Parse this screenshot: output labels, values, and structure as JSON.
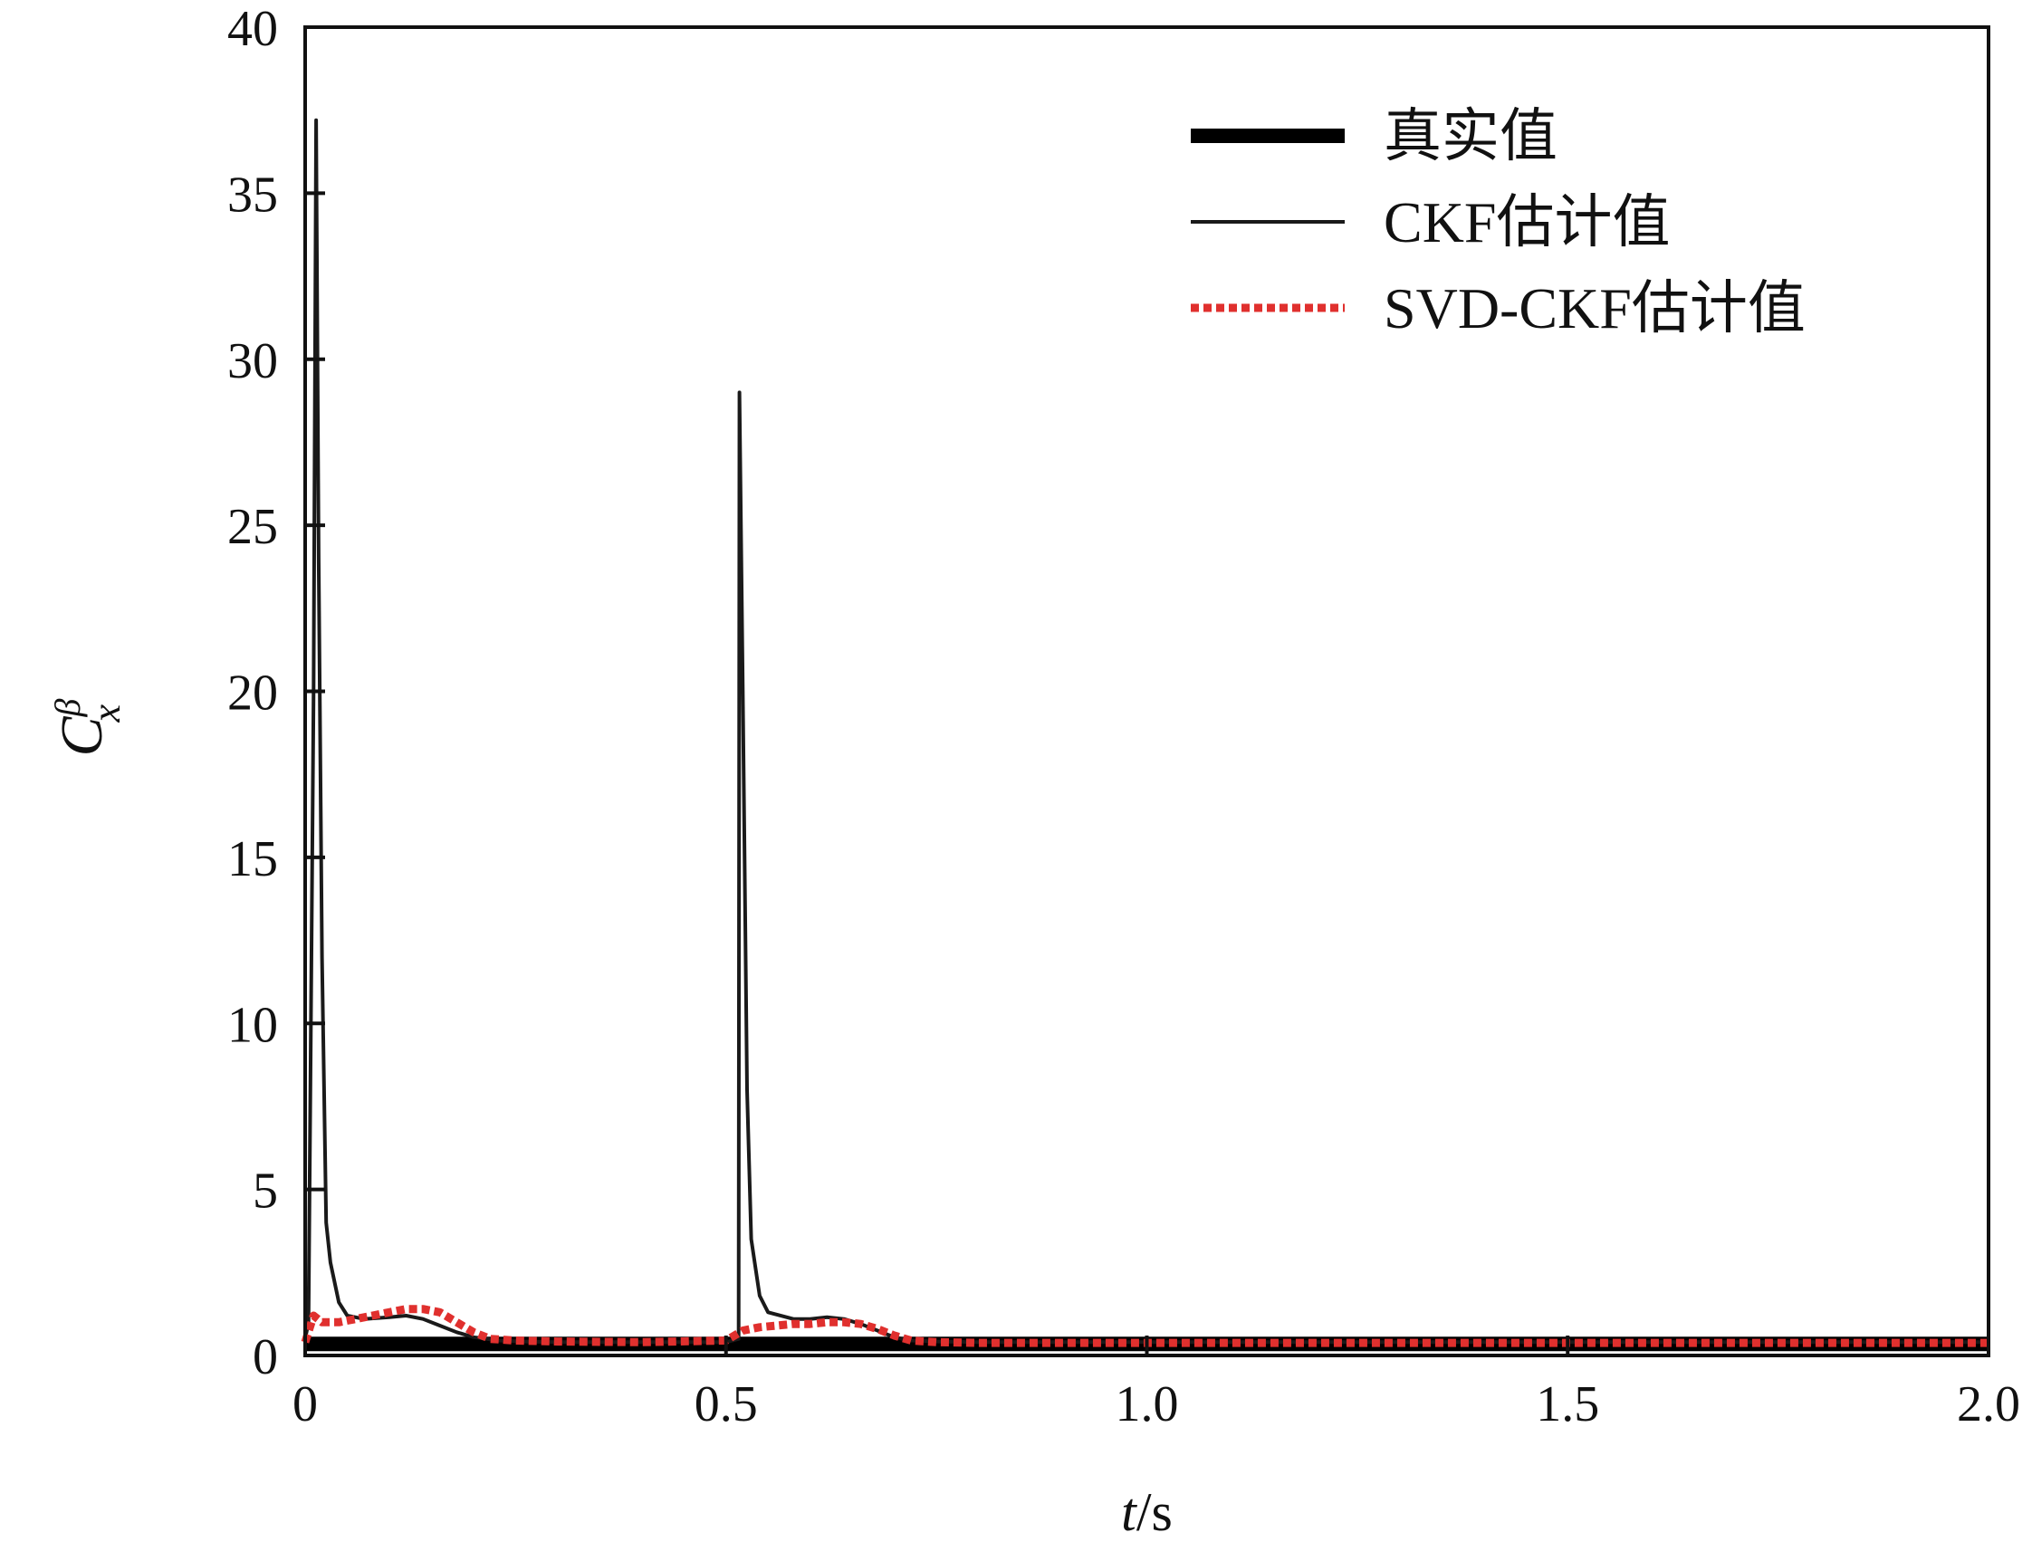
{
  "chart_data": {
    "type": "line",
    "title": "",
    "xlabel": {
      "var": "t",
      "unit": "/s"
    },
    "ylabel": {
      "base": "C",
      "sup": "β",
      "sub": "x"
    },
    "xlim": [
      0,
      2.0
    ],
    "ylim": [
      0,
      40
    ],
    "xticks": [
      "0",
      "0.5",
      "1.0",
      "1.5",
      "2.0"
    ],
    "yticks": [
      "0",
      "5",
      "10",
      "15",
      "20",
      "25",
      "30",
      "35",
      "40"
    ],
    "grid": false,
    "legend_position": "top-right",
    "series": [
      {
        "name": "真实值",
        "color": "#000000",
        "style": "thick-solid",
        "x": [
          0,
          2.0
        ],
        "y": [
          0.35,
          0.35
        ]
      },
      {
        "name": "CKF估计值",
        "color": "#1a1a1a",
        "style": "solid",
        "x": [
          0,
          0.004,
          0.01,
          0.013,
          0.016,
          0.02,
          0.025,
          0.03,
          0.04,
          0.05,
          0.07,
          0.1,
          0.12,
          0.14,
          0.16,
          0.18,
          0.2,
          0.23,
          0.26,
          0.3,
          0.4,
          0.5,
          0.515,
          0.516,
          0.52,
          0.525,
          0.53,
          0.54,
          0.55,
          0.58,
          0.6,
          0.62,
          0.64,
          0.66,
          0.68,
          0.7,
          0.72,
          0.75,
          0.8,
          1.0,
          1.5,
          2.0
        ],
        "y": [
          0.5,
          1.0,
          20,
          37.2,
          24,
          12,
          4,
          2.8,
          1.6,
          1.2,
          1.1,
          1.15,
          1.2,
          1.1,
          0.9,
          0.7,
          0.55,
          0.45,
          0.42,
          0.4,
          0.4,
          0.4,
          0.5,
          29.0,
          20,
          8,
          3.5,
          1.8,
          1.3,
          1.1,
          1.1,
          1.15,
          1.1,
          0.95,
          0.75,
          0.55,
          0.45,
          0.42,
          0.4,
          0.4,
          0.4,
          0.4
        ]
      },
      {
        "name": "SVD-CKF估计值",
        "color": "#e0302e",
        "style": "dotted",
        "x": [
          0,
          0.01,
          0.02,
          0.04,
          0.06,
          0.08,
          0.1,
          0.12,
          0.14,
          0.16,
          0.18,
          0.2,
          0.22,
          0.25,
          0.3,
          0.4,
          0.5,
          0.52,
          0.54,
          0.56,
          0.58,
          0.6,
          0.62,
          0.64,
          0.66,
          0.68,
          0.7,
          0.72,
          0.75,
          0.8,
          1.0,
          1.5,
          2.0
        ],
        "y": [
          0.4,
          1.2,
          1.0,
          1.0,
          1.1,
          1.2,
          1.3,
          1.4,
          1.4,
          1.3,
          1.0,
          0.7,
          0.5,
          0.45,
          0.42,
          0.4,
          0.45,
          0.75,
          0.85,
          0.9,
          0.95,
          0.95,
          1.0,
          1.0,
          0.95,
          0.8,
          0.6,
          0.45,
          0.4,
          0.38,
          0.38,
          0.38,
          0.38
        ]
      }
    ]
  }
}
